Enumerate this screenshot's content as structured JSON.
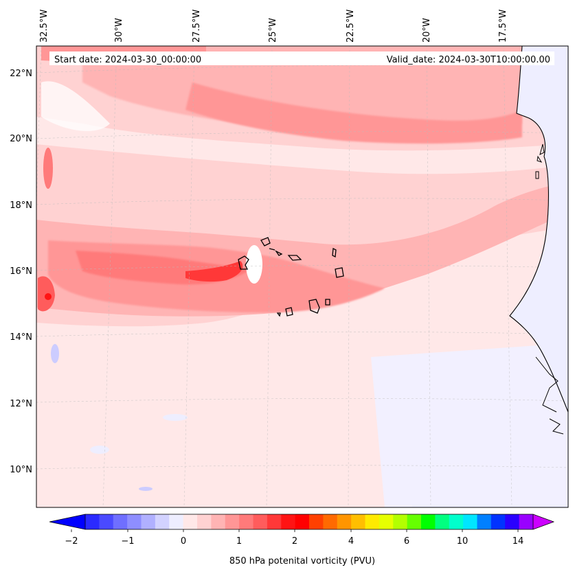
{
  "map": {
    "start_label": "Start date: 2024-03-30_00:00:00",
    "valid_label": "Valid_date: 2024-03-30T10:00:00.00",
    "lon_labels": [
      "32.5°W",
      "30°W",
      "27.5°W",
      "25°W",
      "22.5°W",
      "20°W",
      "17.5°W"
    ],
    "lat_labels": [
      "22°N",
      "20°N",
      "18°N",
      "16°N",
      "14°N",
      "12°N",
      "10°N"
    ],
    "colorbar_ticks": [
      "−2",
      "−1",
      "0",
      "1",
      "2",
      "4",
      "6",
      "10",
      "14"
    ],
    "colorbar_label": "850 hPa potenital vorticity (PVU)",
    "colorbar_colors": [
      "#0000ff",
      "#2a2aff",
      "#4a4aff",
      "#6f6fff",
      "#8e8eff",
      "#b0b0ff",
      "#d2d2ff",
      "#eeeeff",
      "#ffe8e8",
      "#ffd2d2",
      "#ffb4b4",
      "#ff9696",
      "#ff7a7a",
      "#ff5c5c",
      "#ff3838",
      "#ff1414",
      "#ff0000",
      "#ff4000",
      "#ff6a00",
      "#ff9500",
      "#ffbf00",
      "#ffea00",
      "#e6ff00",
      "#b3ff00",
      "#66ff00",
      "#00ff00",
      "#00ff80",
      "#00ffcc",
      "#00e6ff",
      "#0080ff",
      "#0033ff",
      "#2a00ff",
      "#9900ff",
      "#cc00ff"
    ],
    "land_color": "#eeeeff",
    "sea_base": "#ffe8e8"
  }
}
